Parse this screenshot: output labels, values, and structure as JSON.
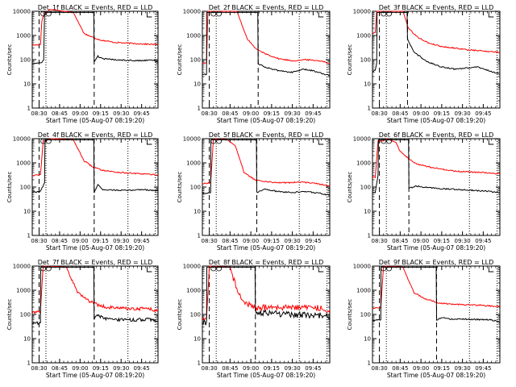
{
  "chart_data": {
    "type": "line",
    "y_scale": "log",
    "ylim": [
      1,
      10000
    ],
    "y_ticks": [
      1,
      10,
      100,
      1000,
      10000
    ],
    "y_tick_labels": [
      "1",
      "10",
      "100",
      "1000",
      "10000"
    ],
    "x_tick_labels": [
      "08:30",
      "08:45",
      "09:00",
      "09:15",
      "09:30",
      "09:45"
    ],
    "ylabel": "Counts/sec",
    "xlabel": "Start Time (05-Aug-07 08:19:20)",
    "series_colors": {
      "events": "#000000",
      "lld": "#ff0000"
    },
    "panels": [
      {
        "title": "Det_1f BLACK = Events, RED = LLD",
        "events": [
          {
            "x": 0,
            "y": 70
          },
          {
            "x": 6,
            "y": 72
          },
          {
            "x": 8.4,
            "y": 95
          },
          {
            "x": 9,
            "y": 9000
          },
          {
            "x": 20,
            "y": 9000
          },
          {
            "x": 45,
            "y": 9000
          },
          {
            "x": 45.3,
            "y": 80
          },
          {
            "x": 48,
            "y": 140
          },
          {
            "x": 51,
            "y": 110
          },
          {
            "x": 60,
            "y": 100
          },
          {
            "x": 70,
            "y": 95
          },
          {
            "x": 80,
            "y": 90
          },
          {
            "x": 87,
            "y": 100
          },
          {
            "x": 92,
            "y": 80
          }
        ],
        "lld": [
          {
            "x": 0,
            "y": 400
          },
          {
            "x": 6,
            "y": 420
          },
          {
            "x": 7,
            "y": 4000
          },
          {
            "x": 9,
            "y": 9000
          },
          {
            "x": 11,
            "y": 9800
          },
          {
            "x": 13,
            "y": 12000
          },
          {
            "x": 30,
            "y": 9000
          },
          {
            "x": 38,
            "y": 1200
          },
          {
            "x": 44,
            "y": 850
          },
          {
            "x": 50,
            "y": 650
          },
          {
            "x": 60,
            "y": 520
          },
          {
            "x": 70,
            "y": 480
          },
          {
            "x": 80,
            "y": 450
          },
          {
            "x": 92,
            "y": 420
          }
        ]
      },
      {
        "title": "Det_2f BLACK = Events, RED = LLD",
        "events": [
          {
            "x": 0,
            "y": 25
          },
          {
            "x": 3,
            "y": 25
          },
          {
            "x": 3.1,
            "y": 9000
          },
          {
            "x": 40,
            "y": 9000
          },
          {
            "x": 40.3,
            "y": 70
          },
          {
            "x": 45,
            "y": 50
          },
          {
            "x": 55,
            "y": 35
          },
          {
            "x": 65,
            "y": 30
          },
          {
            "x": 73,
            "y": 40
          },
          {
            "x": 80,
            "y": 35
          },
          {
            "x": 92,
            "y": 22
          }
        ],
        "lld": [
          {
            "x": 0,
            "y": 70
          },
          {
            "x": 3,
            "y": 75
          },
          {
            "x": 4,
            "y": 10000
          },
          {
            "x": 25,
            "y": 10000
          },
          {
            "x": 32,
            "y": 800
          },
          {
            "x": 38,
            "y": 300
          },
          {
            "x": 45,
            "y": 180
          },
          {
            "x": 55,
            "y": 110
          },
          {
            "x": 65,
            "y": 90
          },
          {
            "x": 75,
            "y": 100
          },
          {
            "x": 85,
            "y": 90
          },
          {
            "x": 92,
            "y": 70
          }
        ]
      },
      {
        "title": "Det_3f BLACK = Events, RED = LLD",
        "events": [
          {
            "x": 0,
            "y": 35
          },
          {
            "x": 2,
            "y": 35
          },
          {
            "x": 3,
            "y": 70
          },
          {
            "x": 3.3,
            "y": 9000
          },
          {
            "x": 25,
            "y": 9000
          },
          {
            "x": 25.3,
            "y": 700
          },
          {
            "x": 30,
            "y": 200
          },
          {
            "x": 40,
            "y": 80
          },
          {
            "x": 50,
            "y": 50
          },
          {
            "x": 60,
            "y": 40
          },
          {
            "x": 68,
            "y": 45
          },
          {
            "x": 76,
            "y": 50
          },
          {
            "x": 84,
            "y": 35
          },
          {
            "x": 92,
            "y": 25
          }
        ],
        "lld": [
          {
            "x": 0,
            "y": 1200
          },
          {
            "x": 2,
            "y": 1300
          },
          {
            "x": 3,
            "y": 10000
          },
          {
            "x": 22,
            "y": 10000
          },
          {
            "x": 26,
            "y": 2000
          },
          {
            "x": 32,
            "y": 900
          },
          {
            "x": 40,
            "y": 500
          },
          {
            "x": 50,
            "y": 350
          },
          {
            "x": 60,
            "y": 300
          },
          {
            "x": 70,
            "y": 250
          },
          {
            "x": 80,
            "y": 230
          },
          {
            "x": 92,
            "y": 200
          }
        ]
      },
      {
        "title": "Det_4f BLACK = Events, RED = LLD",
        "events": [
          {
            "x": 0,
            "y": 60
          },
          {
            "x": 6,
            "y": 65
          },
          {
            "x": 9,
            "y": 150
          },
          {
            "x": 9.3,
            "y": 9000
          },
          {
            "x": 45,
            "y": 9000
          },
          {
            "x": 45.3,
            "y": 60
          },
          {
            "x": 48,
            "y": 130
          },
          {
            "x": 51,
            "y": 80
          },
          {
            "x": 60,
            "y": 75
          },
          {
            "x": 70,
            "y": 72
          },
          {
            "x": 80,
            "y": 80
          },
          {
            "x": 92,
            "y": 70
          }
        ],
        "lld": [
          {
            "x": 0,
            "y": 300
          },
          {
            "x": 6,
            "y": 320
          },
          {
            "x": 8,
            "y": 8000
          },
          {
            "x": 10,
            "y": 8000
          },
          {
            "x": 13,
            "y": 10000
          },
          {
            "x": 30,
            "y": 9000
          },
          {
            "x": 38,
            "y": 1200
          },
          {
            "x": 44,
            "y": 700
          },
          {
            "x": 50,
            "y": 520
          },
          {
            "x": 60,
            "y": 420
          },
          {
            "x": 70,
            "y": 380
          },
          {
            "x": 80,
            "y": 350
          },
          {
            "x": 92,
            "y": 320
          }
        ]
      },
      {
        "title": "Det_5f BLACK = Events, RED = LLD",
        "events": [
          {
            "x": 0,
            "y": 55
          },
          {
            "x": 6,
            "y": 60
          },
          {
            "x": 6.2,
            "y": 9000
          },
          {
            "x": 39,
            "y": 9000
          },
          {
            "x": 39.3,
            "y": 60
          },
          {
            "x": 45,
            "y": 80
          },
          {
            "x": 55,
            "y": 65
          },
          {
            "x": 65,
            "y": 60
          },
          {
            "x": 75,
            "y": 65
          },
          {
            "x": 85,
            "y": 55
          },
          {
            "x": 92,
            "y": 45
          }
        ],
        "lld": [
          {
            "x": 0,
            "y": 140
          },
          {
            "x": 6,
            "y": 150
          },
          {
            "x": 8,
            "y": 10000
          },
          {
            "x": 18,
            "y": 9000
          },
          {
            "x": 24,
            "y": 5000
          },
          {
            "x": 30,
            "y": 400
          },
          {
            "x": 38,
            "y": 200
          },
          {
            "x": 50,
            "y": 160
          },
          {
            "x": 60,
            "y": 150
          },
          {
            "x": 70,
            "y": 160
          },
          {
            "x": 80,
            "y": 150
          },
          {
            "x": 92,
            "y": 110
          }
        ]
      },
      {
        "title": "Det_6f BLACK = Events, RED = LLD",
        "events": [
          {
            "x": 0,
            "y": 60
          },
          {
            "x": 2,
            "y": 60
          },
          {
            "x": 4,
            "y": 300
          },
          {
            "x": 4.3,
            "y": 9000
          },
          {
            "x": 26,
            "y": 9000
          },
          {
            "x": 26.3,
            "y": 90
          },
          {
            "x": 32,
            "y": 110
          },
          {
            "x": 40,
            "y": 95
          },
          {
            "x": 50,
            "y": 85
          },
          {
            "x": 60,
            "y": 80
          },
          {
            "x": 70,
            "y": 75
          },
          {
            "x": 80,
            "y": 70
          },
          {
            "x": 92,
            "y": 60
          }
        ],
        "lld": [
          {
            "x": 0,
            "y": 250
          },
          {
            "x": 2,
            "y": 260
          },
          {
            "x": 4,
            "y": 8000
          },
          {
            "x": 8,
            "y": 8000
          },
          {
            "x": 10,
            "y": 10000
          },
          {
            "x": 17,
            "y": 7000
          },
          {
            "x": 20,
            "y": 3000
          },
          {
            "x": 26,
            "y": 1500
          },
          {
            "x": 32,
            "y": 900
          },
          {
            "x": 40,
            "y": 700
          },
          {
            "x": 50,
            "y": 550
          },
          {
            "x": 60,
            "y": 450
          },
          {
            "x": 70,
            "y": 420
          },
          {
            "x": 80,
            "y": 400
          },
          {
            "x": 92,
            "y": 350
          }
        ]
      },
      {
        "title": "Det_7f BLACK = Events, RED = LLD",
        "events": [
          {
            "x": 0,
            "y": 45
          },
          {
            "x": 6,
            "y": 45
          },
          {
            "x": 6.2,
            "y": 9000
          },
          {
            "x": 45,
            "y": 9000
          },
          {
            "x": 45.3,
            "y": 70
          },
          {
            "x": 48,
            "y": 90
          },
          {
            "x": 55,
            "y": 65
          },
          {
            "x": 65,
            "y": 60
          },
          {
            "x": 75,
            "y": 60
          },
          {
            "x": 85,
            "y": 65
          },
          {
            "x": 92,
            "y": 50
          }
        ],
        "lld": [
          {
            "x": 0,
            "y": 120
          },
          {
            "x": 6,
            "y": 130
          },
          {
            "x": 8,
            "y": 10000
          },
          {
            "x": 25,
            "y": 9000
          },
          {
            "x": 33,
            "y": 800
          },
          {
            "x": 40,
            "y": 400
          },
          {
            "x": 48,
            "y": 250
          },
          {
            "x": 55,
            "y": 200
          },
          {
            "x": 65,
            "y": 180
          },
          {
            "x": 75,
            "y": 170
          },
          {
            "x": 85,
            "y": 180
          },
          {
            "x": 92,
            "y": 140
          }
        ]
      },
      {
        "title": "Det_8f BLACK = Events, RED = LLD",
        "events": [
          {
            "x": 0,
            "y": 50
          },
          {
            "x": 3,
            "y": 50
          },
          {
            "x": 3.2,
            "y": 9000
          },
          {
            "x": 38,
            "y": 9000
          },
          {
            "x": 38.3,
            "y": 130
          },
          {
            "x": 45,
            "y": 120
          },
          {
            "x": 55,
            "y": 110
          },
          {
            "x": 65,
            "y": 100
          },
          {
            "x": 75,
            "y": 100
          },
          {
            "x": 85,
            "y": 95
          },
          {
            "x": 92,
            "y": 80
          }
        ],
        "lld": [
          {
            "x": 0,
            "y": 70
          },
          {
            "x": 3,
            "y": 75
          },
          {
            "x": 5,
            "y": 10000
          },
          {
            "x": 20,
            "y": 9000
          },
          {
            "x": 26,
            "y": 700
          },
          {
            "x": 32,
            "y": 300
          },
          {
            "x": 38,
            "y": 180
          },
          {
            "x": 45,
            "y": 200
          },
          {
            "x": 55,
            "y": 200
          },
          {
            "x": 65,
            "y": 190
          },
          {
            "x": 75,
            "y": 200
          },
          {
            "x": 85,
            "y": 190
          },
          {
            "x": 92,
            "y": 150
          }
        ]
      },
      {
        "title": "Det_9f BLACK = Events, RED = LLD",
        "events": [
          {
            "x": 0,
            "y": 55
          },
          {
            "x": 6,
            "y": 60
          },
          {
            "x": 6.2,
            "y": 9000
          },
          {
            "x": 46,
            "y": 9000
          },
          {
            "x": 46.3,
            "y": 60
          },
          {
            "x": 50,
            "y": 75
          },
          {
            "x": 55,
            "y": 65
          },
          {
            "x": 65,
            "y": 65
          },
          {
            "x": 75,
            "y": 62
          },
          {
            "x": 85,
            "y": 60
          },
          {
            "x": 92,
            "y": 50
          }
        ],
        "lld": [
          {
            "x": 0,
            "y": 180
          },
          {
            "x": 6,
            "y": 190
          },
          {
            "x": 8,
            "y": 10000
          },
          {
            "x": 22,
            "y": 9000
          },
          {
            "x": 30,
            "y": 800
          },
          {
            "x": 38,
            "y": 450
          },
          {
            "x": 48,
            "y": 300
          },
          {
            "x": 58,
            "y": 260
          },
          {
            "x": 68,
            "y": 250
          },
          {
            "x": 78,
            "y": 240
          },
          {
            "x": 92,
            "y": 210
          }
        ]
      }
    ]
  }
}
